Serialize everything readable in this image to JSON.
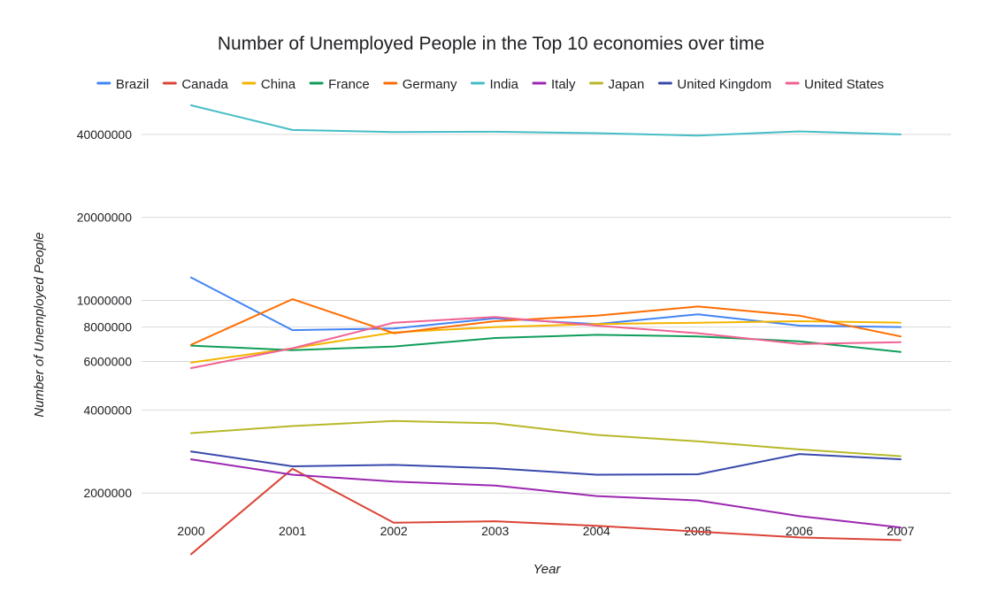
{
  "chart_data": {
    "type": "line",
    "title": "Number of Unemployed People in the Top 10 economies over time",
    "xlabel": "Year",
    "ylabel": "Number of Unemployed People",
    "y_scale": "log",
    "grid": true,
    "legend_position": "top",
    "categories": [
      "2000",
      "2001",
      "2002",
      "2003",
      "2004",
      "2005",
      "2006",
      "2007"
    ],
    "y_ticks": [
      2000000,
      4000000,
      6000000,
      8000000,
      10000000,
      20000000,
      40000000
    ],
    "y_tick_labels": [
      "2000000",
      "4000000",
      "6000000",
      "8000000",
      "10000000",
      "20000000",
      "40000000"
    ],
    "ylim": [
      1000000,
      60000000
    ],
    "series": [
      {
        "name": "Brazil",
        "color": "#4285f4",
        "values": [
          12100000,
          7800000,
          7900000,
          8600000,
          8200000,
          8900000,
          8100000,
          8000000
        ]
      },
      {
        "name": "Canada",
        "color": "#db4437",
        "values": [
          1200000,
          2450000,
          1560000,
          1580000,
          1520000,
          1450000,
          1380000,
          1350000
        ]
      },
      {
        "name": "China",
        "color": "#f4b400",
        "values": [
          5950000,
          6700000,
          7650000,
          8000000,
          8200000,
          8300000,
          8400000,
          8300000
        ]
      },
      {
        "name": "France",
        "color": "#0f9d58",
        "values": [
          6850000,
          6600000,
          6800000,
          7300000,
          7500000,
          7400000,
          7100000,
          6500000
        ]
      },
      {
        "name": "Germany",
        "color": "#ff6d01",
        "values": [
          6900000,
          10100000,
          7600000,
          8400000,
          8800000,
          9500000,
          8800000,
          7400000
        ]
      },
      {
        "name": "India",
        "color": "#46bdc6",
        "values": [
          51000000,
          41500000,
          40800000,
          40900000,
          40400000,
          39600000,
          41000000,
          40000000
        ]
      },
      {
        "name": "Italy",
        "color": "#9c27b0",
        "values": [
          2650000,
          2330000,
          2200000,
          2130000,
          1950000,
          1880000,
          1650000,
          1500000
        ]
      },
      {
        "name": "Japan",
        "color": "#b8b82a",
        "values": [
          3300000,
          3500000,
          3650000,
          3580000,
          3250000,
          3080000,
          2880000,
          2720000
        ]
      },
      {
        "name": "United Kingdom",
        "color": "#3949ab",
        "values": [
          2830000,
          2500000,
          2530000,
          2460000,
          2330000,
          2340000,
          2770000,
          2650000
        ]
      },
      {
        "name": "United States",
        "color": "#f06292",
        "values": [
          5680000,
          6700000,
          8300000,
          8700000,
          8100000,
          7600000,
          6950000,
          7050000
        ]
      }
    ]
  }
}
